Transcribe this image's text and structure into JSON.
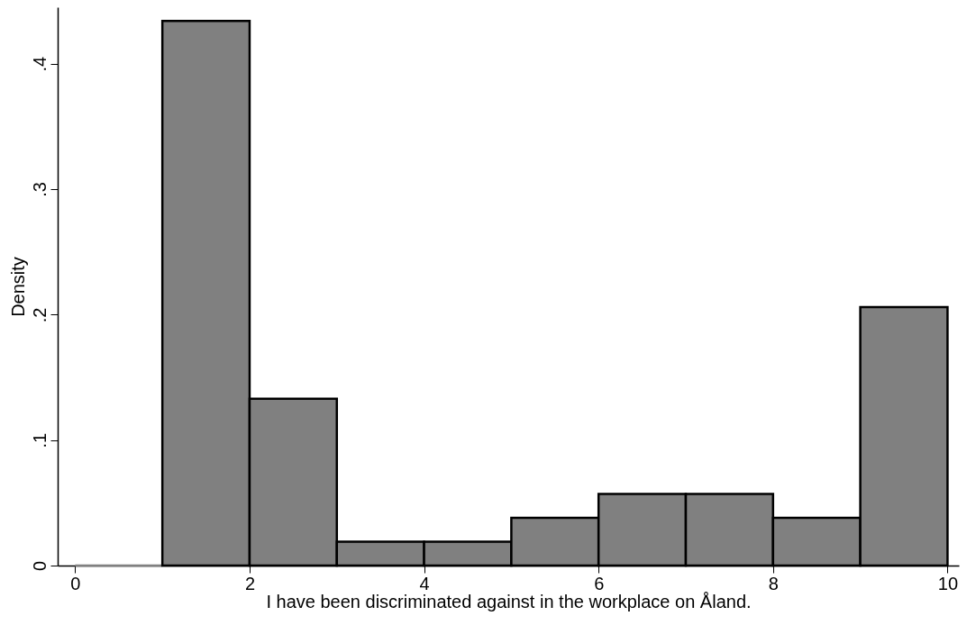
{
  "chart_data": {
    "type": "histogram",
    "xlabel": "I have been discriminated against in the workplace on Åland.",
    "ylabel": "Density",
    "bins": [
      0,
      1,
      2,
      3,
      4,
      5,
      6,
      7,
      8,
      9,
      10
    ],
    "values": [
      0,
      0.434,
      0.133,
      0.019,
      0.019,
      0.038,
      0.057,
      0.057,
      0.038,
      0.206
    ],
    "color": "#808080",
    "xlim": [
      -0.2,
      10.13
    ],
    "xticks": [
      0,
      2,
      4,
      6,
      8,
      10
    ],
    "ylim": [
      0,
      0.445
    ],
    "yticks": [
      0,
      {
        "value": 0.1,
        "label": ".1"
      },
      {
        "value": 0.2,
        "label": ".2"
      },
      {
        "value": 0.3,
        "label": ".3"
      },
      {
        "value": 0.4,
        "label": ".4"
      }
    ],
    "grid": false
  }
}
